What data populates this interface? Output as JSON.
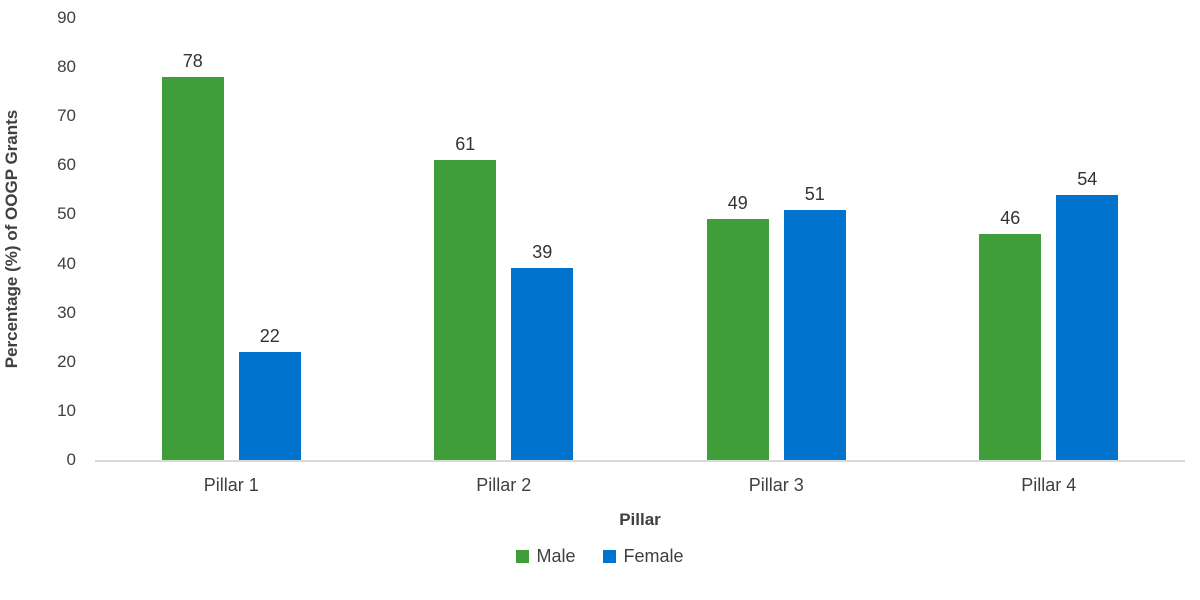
{
  "chart_data": {
    "type": "bar",
    "categories": [
      "Pillar 1",
      "Pillar 2",
      "Pillar 3",
      "Pillar 4"
    ],
    "series": [
      {
        "name": "Male",
        "color": "#3F9D3A",
        "values": [
          78,
          61,
          49,
          46
        ]
      },
      {
        "name": "Female",
        "color": "#0073CF",
        "values": [
          22,
          39,
          51,
          54
        ]
      }
    ],
    "title": "",
    "xlabel": "Pillar",
    "ylabel": "Percentage (%) of OOGP Grants",
    "ylim": [
      0,
      90
    ],
    "yticks": [
      0,
      10,
      20,
      30,
      40,
      50,
      60,
      70,
      80,
      90
    ],
    "grid": false,
    "legend_position": "bottom",
    "data_labels": true
  },
  "colors": {
    "text": "#404040",
    "data_label_text": "#333333",
    "axis_line": "#D9D9D9",
    "background": "#FFFFFF"
  }
}
